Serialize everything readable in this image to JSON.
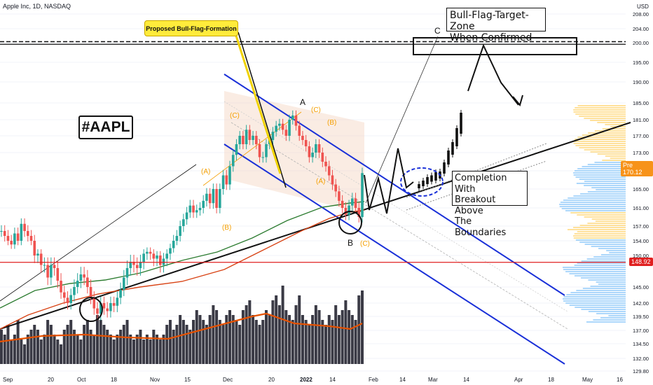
{
  "header": {
    "symbol_line": "Apple Inc, 1D, NASDAQ"
  },
  "annotations": {
    "ticker_label": "#AAPL",
    "flag_callout": "Proposed Bull-Flag-Formation",
    "target_zone": [
      "Bull-Flag-Target-Zone",
      "When Confirmed"
    ],
    "completion": [
      "Completion With",
      "Breakout Above",
      "The Boundaries"
    ],
    "wave_labels": [
      {
        "text": "A",
        "color": "#111111"
      },
      {
        "text": "B",
        "color": "#111111"
      },
      {
        "text": "C",
        "color": "#111111"
      },
      {
        "text": "(A)",
        "color": "#f59f00"
      },
      {
        "text": "(B)",
        "color": "#f59f00"
      },
      {
        "text": "(C)",
        "color": "#f59f00"
      },
      {
        "text": "(A)",
        "color": "#f59f00"
      },
      {
        "text": "(B)",
        "color": "#f59f00"
      },
      {
        "text": "(C)",
        "color": "#f59f00"
      },
      {
        "text": "(C)",
        "color": "#f59f00"
      }
    ]
  },
  "chart_data": {
    "type": "candlestick",
    "title": "Apple Inc, 1D, NASDAQ",
    "y_axis": {
      "unit": "USD",
      "ticks": [
        "208.00",
        "204.00",
        "200.00",
        "195.00",
        "190.00",
        "185.00",
        "181.00",
        "177.00",
        "173.00",
        "169.00",
        "165.00",
        "161.00",
        "157.00",
        "154.00",
        "150.00",
        "145.00",
        "142.00",
        "139.50",
        "137.00",
        "134.50",
        "132.00",
        "129.80"
      ],
      "range": [
        129.8,
        208
      ]
    },
    "x_axis": {
      "ticks": [
        "Sep",
        "20",
        "Oct",
        "18",
        "Nov",
        "15",
        "Dec",
        "20",
        "2022",
        "14",
        "Feb",
        "14",
        "Mar",
        "14",
        "Apr",
        "18",
        "May",
        "16"
      ]
    },
    "price_tags": [
      {
        "label": "Pre",
        "value": "170.12",
        "color": "#f7931a"
      },
      {
        "label": "",
        "value": "148.92",
        "color": "#e02020"
      }
    ],
    "horizontal_levels": [
      {
        "value": 148.92,
        "color": "#e02020",
        "style": "solid"
      },
      {
        "value": 200.3,
        "color": "#111111",
        "style": "dashed"
      },
      {
        "value": 199.6,
        "color": "#111111",
        "style": "solid"
      }
    ],
    "candles_close": [
      156.0,
      155.0,
      154.0,
      153.0,
      155.5,
      154.0,
      157.5,
      156.0,
      155.0,
      154.0,
      150.0,
      150.5,
      148.5,
      148.5,
      146.5,
      148.5,
      148.0,
      146.0,
      144.0,
      143.0,
      142.0,
      143.5,
      145.0,
      146.0,
      147.0,
      146.5,
      145.0,
      143.0,
      141.0,
      140.0,
      142.0,
      141.0,
      140.5,
      142.0,
      141.5,
      143.0,
      144.5,
      146.5,
      148.0,
      149.0,
      148.5,
      148.0,
      149.0,
      150.5,
      151.0,
      150.5,
      149.5,
      150.0,
      148.5,
      149.5,
      150.5,
      152.0,
      154.0,
      155.0,
      157.0,
      158.5,
      160.0,
      161.5,
      160.0,
      160.5,
      161.0,
      162.5,
      164.0,
      162.0,
      165.0,
      161.0,
      165.0,
      168.0,
      166.0,
      170.0,
      172.5,
      175.0,
      177.0,
      175.0,
      178.5,
      176.0,
      177.0,
      175.0,
      172.0,
      172.0,
      175.0,
      176.0,
      178.0,
      179.5,
      180.0,
      178.5,
      177.0,
      181.0,
      182.0,
      179.5,
      177.0,
      176.0,
      174.5,
      172.0,
      173.0,
      175.0,
      173.0,
      171.0,
      170.0,
      168.0,
      166.0,
      164.5,
      162.5,
      161.0,
      159.5,
      161.5,
      163.0,
      161.0,
      159.0,
      168.5
    ],
    "ma_series": [
      {
        "name": "",
        "color": "#d84315"
      },
      {
        "name": "",
        "color": "#2e7d32"
      }
    ],
    "volume_bars": [
      7,
      6,
      8,
      5,
      6,
      9,
      5,
      4,
      6,
      7,
      8,
      7,
      5,
      6,
      9,
      8,
      6,
      5,
      4,
      7,
      8,
      9,
      7,
      6,
      5,
      8,
      9,
      7,
      6,
      10,
      9,
      8,
      7,
      6,
      5,
      6,
      7,
      8,
      9,
      6,
      5,
      6,
      7,
      5,
      6,
      5,
      7,
      6,
      5,
      6,
      8,
      9,
      7,
      8,
      10,
      9,
      8,
      7,
      9,
      11,
      10,
      9,
      8,
      10,
      12,
      11,
      9,
      8,
      10,
      11,
      10,
      9,
      8,
      11,
      12,
      13,
      10,
      9,
      8,
      9,
      11,
      10,
      13,
      14,
      12,
      16,
      11,
      10,
      9,
      12,
      14,
      10,
      9,
      8,
      10,
      12,
      11,
      9,
      8,
      10,
      9,
      12,
      10,
      11,
      13,
      11,
      10,
      9,
      14,
      15
    ],
    "projection_path_label": "C"
  }
}
